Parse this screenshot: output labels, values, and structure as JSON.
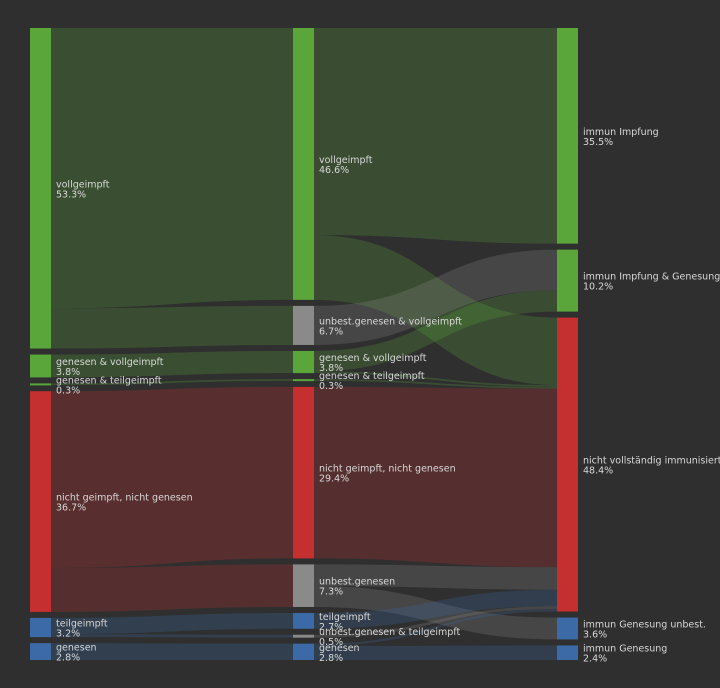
{
  "chart_data": {
    "type": "sankey",
    "columns": [
      [
        {
          "id": "l_voll",
          "name": "vollgeimpft",
          "value": 53.3,
          "color": "#5aa63a"
        },
        {
          "id": "l_gv",
          "name": "genesen & vollgeimpft",
          "value": 3.8,
          "color": "#5aa63a"
        },
        {
          "id": "l_gt",
          "name": "genesen & teilgeimpft",
          "value": 0.3,
          "color": "#5aa63a"
        },
        {
          "id": "l_nn",
          "name": "nicht geimpft, nicht genesen",
          "value": 36.7,
          "color": "#c62f2f"
        },
        {
          "id": "l_teil",
          "name": "teilgeimpft",
          "value": 3.2,
          "color": "#3b6aa6"
        },
        {
          "id": "l_gen",
          "name": "genesen",
          "value": 2.8,
          "color": "#3b6aa6"
        }
      ],
      [
        {
          "id": "m_voll",
          "name": "vollgeimpft",
          "value": 46.6,
          "color": "#5aa63a"
        },
        {
          "id": "m_ugv",
          "name": "unbest.genesen & vollgeimpft",
          "value": 6.7,
          "color": "#8a8a8a"
        },
        {
          "id": "m_gv",
          "name": "genesen & vollgeimpft",
          "value": 3.8,
          "color": "#5aa63a"
        },
        {
          "id": "m_gt",
          "name": "genesen & teilgeimpft",
          "value": 0.3,
          "color": "#5aa63a"
        },
        {
          "id": "m_nn",
          "name": "nicht geimpft, nicht genesen",
          "value": 29.4,
          "color": "#c62f2f"
        },
        {
          "id": "m_ug",
          "name": "unbest.genesen",
          "value": 7.3,
          "color": "#8a8a8a"
        },
        {
          "id": "m_teil",
          "name": "teilgeimpft",
          "value": 2.7,
          "color": "#3b6aa6"
        },
        {
          "id": "m_ugt",
          "name": "unbest.genesen & teilgeimpft",
          "value": 0.5,
          "color": "#8a8a8a"
        },
        {
          "id": "m_gen",
          "name": "genesen",
          "value": 2.8,
          "color": "#3b6aa6"
        }
      ],
      [
        {
          "id": "r_imp",
          "name": "immun Impfung",
          "value": 35.5,
          "color": "#5aa63a"
        },
        {
          "id": "r_ig",
          "name": "immun Impfung & Genesung",
          "value": 10.2,
          "color": "#5aa63a"
        },
        {
          "id": "r_nvi",
          "name": "nicht vollständig immunisiert",
          "value": 48.4,
          "color": "#c62f2f"
        },
        {
          "id": "r_igu",
          "name": "immun Genesung unbest.",
          "value": 3.6,
          "color": "#3b6aa6"
        },
        {
          "id": "r_igen",
          "name": "immun Genesung",
          "value": 2.4,
          "color": "#3b6aa6"
        }
      ]
    ],
    "links": [
      {
        "source": "l_voll",
        "target": "m_voll",
        "value": 46.6
      },
      {
        "source": "l_voll",
        "target": "m_ugv",
        "value": 6.7
      },
      {
        "source": "l_gv",
        "target": "m_gv",
        "value": 3.8
      },
      {
        "source": "l_gt",
        "target": "m_gt",
        "value": 0.3
      },
      {
        "source": "l_nn",
        "target": "m_nn",
        "value": 29.4
      },
      {
        "source": "l_nn",
        "target": "m_ug",
        "value": 7.3
      },
      {
        "source": "l_teil",
        "target": "m_teil",
        "value": 2.7
      },
      {
        "source": "l_teil",
        "target": "m_ugt",
        "value": 0.5
      },
      {
        "source": "l_gen",
        "target": "m_gen",
        "value": 2.8
      },
      {
        "source": "m_voll",
        "target": "r_imp",
        "value": 35.5
      },
      {
        "source": "m_voll",
        "target": "r_nvi",
        "value": 11.1
      },
      {
        "source": "m_ugv",
        "target": "r_ig",
        "value": 6.7
      },
      {
        "source": "m_gv",
        "target": "r_ig",
        "value": 3.5
      },
      {
        "source": "m_gv",
        "target": "r_nvi",
        "value": 0.3
      },
      {
        "source": "m_gt",
        "target": "r_nvi",
        "value": 0.3
      },
      {
        "source": "m_nn",
        "target": "r_nvi",
        "value": 29.4
      },
      {
        "source": "m_ug",
        "target": "r_nvi",
        "value": 3.7
      },
      {
        "source": "m_ug",
        "target": "r_igu",
        "value": 3.6
      },
      {
        "source": "m_teil",
        "target": "r_nvi",
        "value": 2.7
      },
      {
        "source": "m_ugt",
        "target": "r_nvi",
        "value": 0.5
      },
      {
        "source": "m_gen",
        "target": "r_nvi",
        "value": 0.4
      },
      {
        "source": "m_gen",
        "target": "r_igen",
        "value": 2.4
      }
    ],
    "value_format": "percent"
  }
}
